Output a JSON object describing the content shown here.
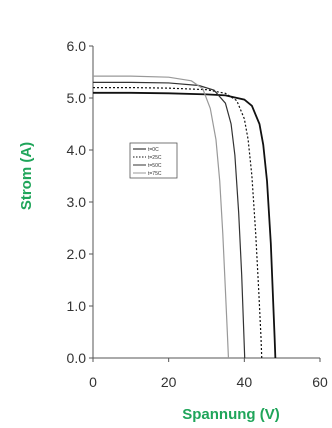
{
  "chart_data": {
    "type": "line",
    "xlabel": "Spannung (V)",
    "ylabel": "Strom (A)",
    "xlim": [
      0,
      60
    ],
    "ylim": [
      0,
      6
    ],
    "x_ticks": [
      "0",
      "20",
      "40",
      "60"
    ],
    "y_ticks": [
      "0.0",
      "1.0",
      "2.0",
      "3.0",
      "4.0",
      "5.0",
      "6.0"
    ],
    "grid": false,
    "legend_position": "center-left",
    "label_color": "#1fa55a",
    "series": [
      {
        "name": "t=0C",
        "color": "#111111",
        "dash": "solid",
        "points": [
          [
            0,
            5.1
          ],
          [
            10,
            5.1
          ],
          [
            20,
            5.09
          ],
          [
            30,
            5.07
          ],
          [
            35,
            5.05
          ],
          [
            40,
            4.97
          ],
          [
            42,
            4.85
          ],
          [
            44,
            4.5
          ],
          [
            45,
            4.1
          ],
          [
            46,
            3.4
          ],
          [
            47,
            2.2
          ],
          [
            47.5,
            1.3
          ],
          [
            48,
            0.4
          ],
          [
            48.2,
            0
          ]
        ]
      },
      {
        "name": "t=25C",
        "color": "#111111",
        "dash": "dotted",
        "points": [
          [
            0,
            5.2
          ],
          [
            10,
            5.2
          ],
          [
            20,
            5.19
          ],
          [
            30,
            5.16
          ],
          [
            35,
            5.09
          ],
          [
            38,
            4.95
          ],
          [
            40,
            4.6
          ],
          [
            41,
            4.2
          ],
          [
            42,
            3.5
          ],
          [
            43,
            2.4
          ],
          [
            43.8,
            1.3
          ],
          [
            44.4,
            0.4
          ],
          [
            44.6,
            0
          ]
        ]
      },
      {
        "name": "t=50C",
        "color": "#333333",
        "dash": "solid",
        "points": [
          [
            0,
            5.3
          ],
          [
            10,
            5.3
          ],
          [
            20,
            5.29
          ],
          [
            28,
            5.24
          ],
          [
            32,
            5.15
          ],
          [
            35,
            4.9
          ],
          [
            36.5,
            4.5
          ],
          [
            37.5,
            3.9
          ],
          [
            38.5,
            2.8
          ],
          [
            39.3,
            1.6
          ],
          [
            39.8,
            0.6
          ],
          [
            40.1,
            0
          ]
        ]
      },
      {
        "name": "t=75C",
        "color": "#999999",
        "dash": "solid",
        "points": [
          [
            0,
            5.42
          ],
          [
            10,
            5.42
          ],
          [
            20,
            5.4
          ],
          [
            26,
            5.33
          ],
          [
            29,
            5.18
          ],
          [
            31,
            4.8
          ],
          [
            32.5,
            4.2
          ],
          [
            33.5,
            3.4
          ],
          [
            34.3,
            2.4
          ],
          [
            35,
            1.3
          ],
          [
            35.5,
            0.5
          ],
          [
            35.8,
            0
          ]
        ]
      }
    ]
  }
}
